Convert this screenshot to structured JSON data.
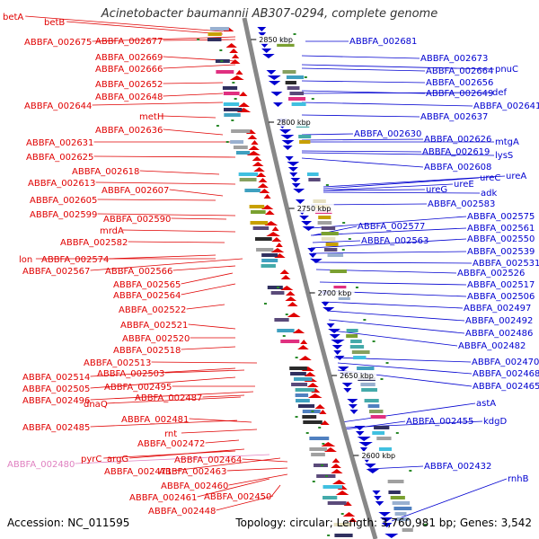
{
  "title": "Acinetobacter baumannii AB307-0294, complete genome",
  "footer": {
    "accession": "Accession: NC_011595",
    "summary": "Topology: circular; Length: 3,760,981 bp; Genes: 3,542"
  },
  "colors": {
    "forward": "#e00000",
    "reverse": "#0000d0",
    "highlight": "#e080c0",
    "backbone": "#888888",
    "tick": "#2a8a2a"
  },
  "ticks": [
    {
      "label": "2850 kbp"
    },
    {
      "label": "2800 kbp"
    },
    {
      "label": "2750 kbp"
    },
    {
      "label": "2700 kbp"
    },
    {
      "label": "2650 kbp"
    },
    {
      "label": "2600 kbp"
    }
  ],
  "left_labels": [
    {
      "text": "betA"
    },
    {
      "text": "betB"
    },
    {
      "text": "ABBFA_002675"
    },
    {
      "text": "ABBFA_002677"
    },
    {
      "text": "ABBFA_002669"
    },
    {
      "text": "ABBFA_002666"
    },
    {
      "text": "ABBFA_002652"
    },
    {
      "text": "ABBFA_002648"
    },
    {
      "text": "ABBFA_002644"
    },
    {
      "text": "metH"
    },
    {
      "text": "ABBFA_002636"
    },
    {
      "text": "ABBFA_002631"
    },
    {
      "text": "ABBFA_002625"
    },
    {
      "text": "ABBFA_002618"
    },
    {
      "text": "ABBFA_002613"
    },
    {
      "text": "ABBFA_002607"
    },
    {
      "text": "ABBFA_002605"
    },
    {
      "text": "ABBFA_002599"
    },
    {
      "text": "ABBFA_002590"
    },
    {
      "text": "mrdA"
    },
    {
      "text": "ABBFA_002582"
    },
    {
      "text": "lon"
    },
    {
      "text": "ABBFA_002574"
    },
    {
      "text": "ABBFA_002567"
    },
    {
      "text": "ABBFA_002566"
    },
    {
      "text": "ABBFA_002565"
    },
    {
      "text": "ABBFA_002564"
    },
    {
      "text": "ABBFA_002522"
    },
    {
      "text": "ABBFA_002521"
    },
    {
      "text": "ABBFA_002520"
    },
    {
      "text": "ABBFA_002518"
    },
    {
      "text": "ABBFA_002513"
    },
    {
      "text": "ABBFA_002514"
    },
    {
      "text": "ABBFA_002503"
    },
    {
      "text": "ABBFA_002505"
    },
    {
      "text": "ABBFA_002495"
    },
    {
      "text": "ABBFA_002496"
    },
    {
      "text": "dnaQ"
    },
    {
      "text": "ABBFA_002487"
    },
    {
      "text": "ABBFA_002481"
    },
    {
      "text": "ABBFA_002485"
    },
    {
      "text": "rnt"
    },
    {
      "text": "ABBFA_002472"
    },
    {
      "text": "pyrC"
    },
    {
      "text": "argG"
    },
    {
      "text": "ABBFA_002480"
    },
    {
      "text": "ABBFA_002471"
    },
    {
      "text": "ABBFA_002464"
    },
    {
      "text": "ABBFA_002463"
    },
    {
      "text": "ABBFA_002460"
    },
    {
      "text": "ABBFA_002461"
    },
    {
      "text": "ABBFA_002450"
    },
    {
      "text": "ABBFA_002448"
    }
  ],
  "right_labels": [
    {
      "text": "ABBFA_002681"
    },
    {
      "text": "ABBFA_002673"
    },
    {
      "text": "pnuC"
    },
    {
      "text": "ABBFA_002664"
    },
    {
      "text": "ABBFA_002656"
    },
    {
      "text": "ABBFA_002649"
    },
    {
      "text": "def"
    },
    {
      "text": "ABBFA_002641"
    },
    {
      "text": "ABBFA_002637"
    },
    {
      "text": "ABBFA_002630"
    },
    {
      "text": "ABBFA_002626"
    },
    {
      "text": "mtgA"
    },
    {
      "text": "ABBFA_002619"
    },
    {
      "text": "lysS"
    },
    {
      "text": "ABBFA_002608"
    },
    {
      "text": "ureA"
    },
    {
      "text": "ureC"
    },
    {
      "text": "ureG"
    },
    {
      "text": "ureE"
    },
    {
      "text": "adk"
    },
    {
      "text": "ABBFA_002583"
    },
    {
      "text": "ABBFA_002575"
    },
    {
      "text": "ABBFA_002577"
    },
    {
      "text": "ABBFA_002561"
    },
    {
      "text": "ABBFA_002563"
    },
    {
      "text": "ABBFA_002550"
    },
    {
      "text": "ABBFA_002539"
    },
    {
      "text": "ABBFA_002531"
    },
    {
      "text": "ABBFA_002526"
    },
    {
      "text": "ABBFA_002517"
    },
    {
      "text": "ABBFA_002506"
    },
    {
      "text": "ABBFA_002497"
    },
    {
      "text": "ABBFA_002492"
    },
    {
      "text": "ABBFA_002486"
    },
    {
      "text": "ABBFA_002482"
    },
    {
      "text": "ABBFA_002470"
    },
    {
      "text": "ABBFA_002468"
    },
    {
      "text": "ABBFA_002465"
    },
    {
      "text": "astA"
    },
    {
      "text": "ABBFA_002455"
    },
    {
      "text": "kdgD"
    },
    {
      "text": "ABBFA_002432"
    },
    {
      "text": "rnhB"
    }
  ]
}
